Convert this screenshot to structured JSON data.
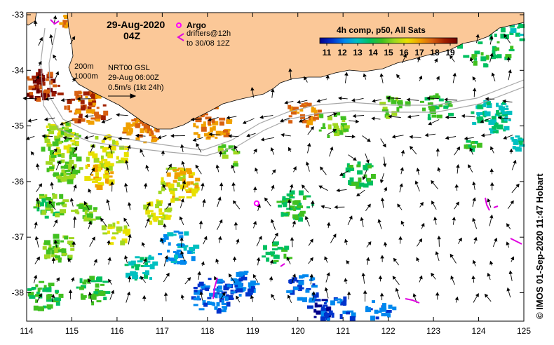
{
  "map": {
    "date": "29-Aug-2020",
    "hour": "04Z",
    "legend": {
      "argo_label": "Argo",
      "drifters_line1": "drifters@12h",
      "drifters_line2": "to 30/08 12Z"
    },
    "contours": {
      "c200": "200m",
      "c1000": "1000m"
    },
    "current_info": {
      "line1": "NRT00 GSL",
      "line2": "29-Aug 06:00Z",
      "line3": "0.5m/s (1kt 24h)"
    },
    "colorbar": {
      "title": "4h comp, p50, All Sats",
      "ticks": [
        "11",
        "12",
        "13",
        "14",
        "15",
        "16",
        "17",
        "18",
        "19"
      ]
    },
    "axes": {
      "lon_ticks": [
        "114",
        "115",
        "116",
        "117",
        "118",
        "119",
        "120",
        "121",
        "122",
        "123",
        "124",
        "125"
      ],
      "lat_ticks": [
        "-33",
        "-34",
        "-35",
        "-36",
        "-37",
        "-38"
      ]
    },
    "credit": "© IMOS 01-Sep-2020 11:47 Hobart",
    "colors": {
      "land": "#fbc898",
      "argo": "#ff00ff",
      "drifter": "#e000e0",
      "sst_scale": [
        "#00008b",
        "#0033cc",
        "#0088ee",
        "#00c0c0",
        "#00c060",
        "#40c020",
        "#a0d820",
        "#e8e000",
        "#f0a000",
        "#d86010",
        "#a02000",
        "#700000"
      ]
    }
  }
}
